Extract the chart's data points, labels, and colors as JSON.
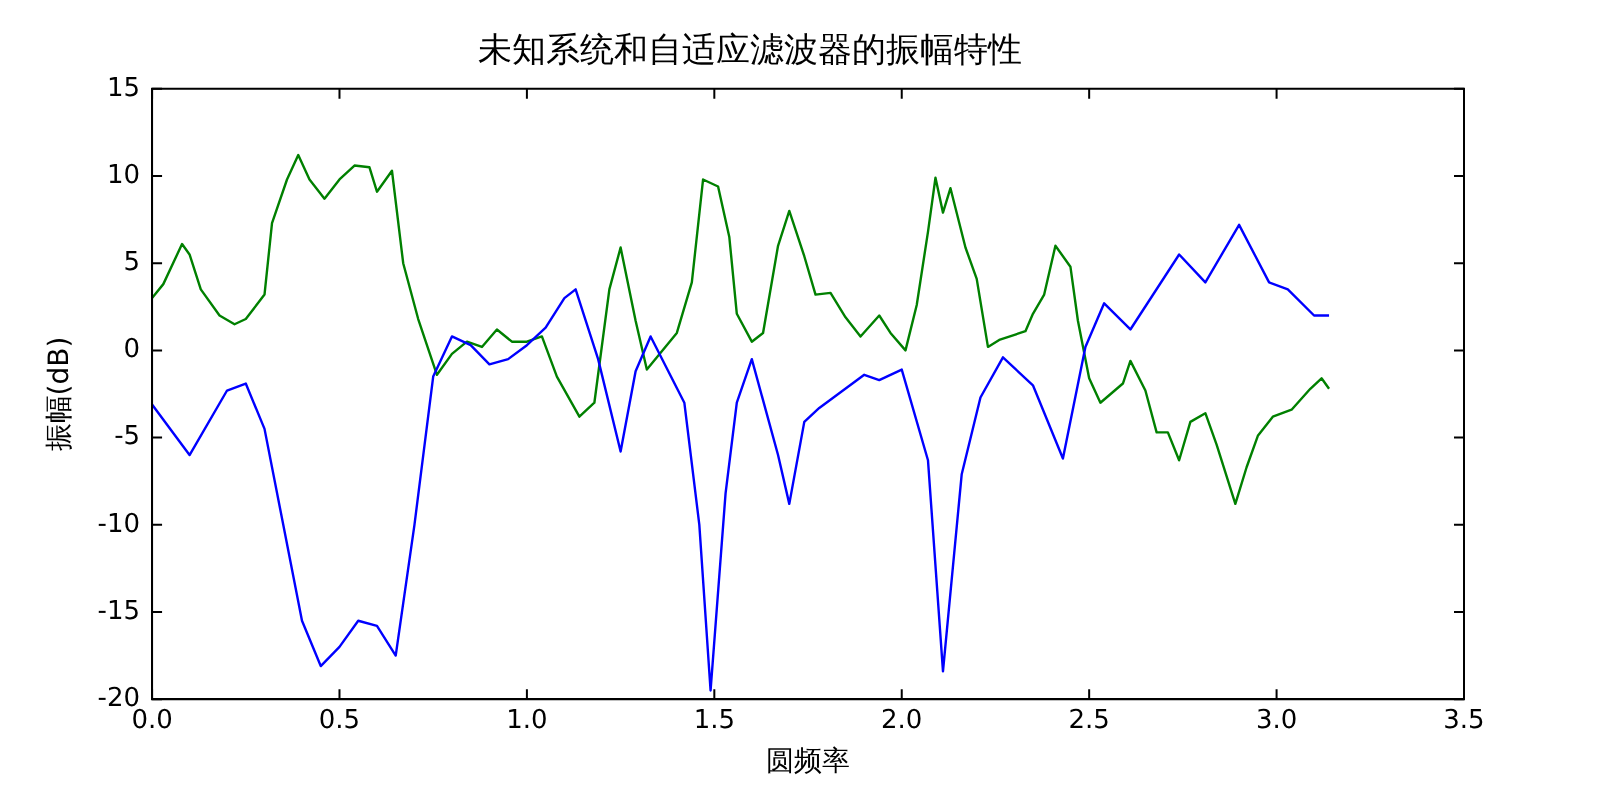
{
  "chart_data": {
    "type": "line",
    "title": "未知系统和自适应滤波器的振幅特性",
    "xlabel": "圆频率",
    "ylabel": "振幅(dB)",
    "xlim": [
      0,
      3.5
    ],
    "xticks": [
      {
        "value": 0,
        "label": "0.0"
      },
      {
        "value": 0.5,
        "label": "0.5"
      },
      {
        "value": 1,
        "label": "1.0"
      },
      {
        "value": 1.5,
        "label": "1.5"
      },
      {
        "value": 2,
        "label": "2.0"
      },
      {
        "value": 2.5,
        "label": "2.5"
      },
      {
        "value": 3,
        "label": "3.0"
      },
      {
        "value": 3.5,
        "label": "3.5"
      }
    ],
    "ylim": [
      -20,
      15
    ],
    "yticks": [
      -20,
      -15,
      -10,
      -5,
      0,
      5,
      10,
      15
    ],
    "grid": false,
    "legend": false,
    "marker": "none",
    "line_style": "solid",
    "series": [
      {
        "color": "#0000ff",
        "x": [
          0,
          0.1,
          0.2,
          0.25,
          0.3,
          0.35,
          0.4,
          0.45,
          0.5,
          0.55,
          0.6,
          0.65,
          0.7,
          0.75,
          0.8,
          0.85,
          0.9,
          0.95,
          1.0,
          1.05,
          1.1,
          1.13,
          1.19,
          1.25,
          1.29,
          1.33,
          1.42,
          1.46,
          1.49,
          1.53,
          1.56,
          1.6,
          1.67,
          1.7,
          1.74,
          1.78,
          1.9,
          1.94,
          2.0,
          2.07,
          2.11,
          2.16,
          2.21,
          2.27,
          2.35,
          2.43,
          2.49,
          2.54,
          2.61,
          2.74,
          2.81,
          2.9,
          2.98,
          3.03,
          3.1,
          3.14
        ],
        "values": [
          -3.1,
          -6.0,
          -2.3,
          -1.9,
          -4.5,
          -10,
          -15.5,
          -18.1,
          -17,
          -15.5,
          -15.8,
          -17.5,
          -10,
          -1.5,
          0.8,
          0.3,
          -0.8,
          -0.5,
          0.3,
          1.3,
          3.0,
          3.5,
          -0.5,
          -5.8,
          -1.2,
          0.8,
          -3.0,
          -10,
          -19.5,
          -8.2,
          -3.0,
          -0.5,
          -6.0,
          -8.8,
          -4.1,
          -3.3,
          -1.4,
          -1.7,
          -1.1,
          -6.3,
          -18.4,
          -7.1,
          -2.7,
          -0.4,
          -2.0,
          -6.2,
          0.2,
          2.7,
          1.2,
          5.5,
          3.9,
          7.2,
          3.9,
          3.5,
          2.0,
          2.0
        ]
      },
      {
        "color": "#008000",
        "x": [
          0,
          0.03,
          0.08,
          0.1,
          0.13,
          0.18,
          0.22,
          0.25,
          0.3,
          0.32,
          0.36,
          0.39,
          0.42,
          0.46,
          0.5,
          0.54,
          0.58,
          0.6,
          0.64,
          0.67,
          0.71,
          0.76,
          0.8,
          0.84,
          0.88,
          0.92,
          0.96,
          1.0,
          1.04,
          1.08,
          1.14,
          1.18,
          1.22,
          1.25,
          1.29,
          1.32,
          1.4,
          1.44,
          1.47,
          1.51,
          1.54,
          1.56,
          1.6,
          1.63,
          1.67,
          1.7,
          1.74,
          1.77,
          1.81,
          1.85,
          1.89,
          1.94,
          1.97,
          2.01,
          2.04,
          2.07,
          2.09,
          2.11,
          2.13,
          2.17,
          2.2,
          2.23,
          2.26,
          2.33,
          2.35,
          2.38,
          2.41,
          2.45,
          2.47,
          2.5,
          2.53,
          2.59,
          2.61,
          2.65,
          2.68,
          2.71,
          2.74,
          2.77,
          2.81,
          2.84,
          2.89,
          2.92,
          2.95,
          2.99,
          3.04,
          3.09,
          3.12,
          3.14
        ],
        "values": [
          3.0,
          3.8,
          6.1,
          5.5,
          3.5,
          2.0,
          1.5,
          1.8,
          3.2,
          7.3,
          9.8,
          11.2,
          9.8,
          8.7,
          9.8,
          10.6,
          10.5,
          9.1,
          10.3,
          5.0,
          1.8,
          -1.4,
          -0.2,
          0.5,
          0.2,
          1.2,
          0.5,
          0.5,
          0.8,
          -1.5,
          -3.8,
          -3.0,
          3.5,
          5.9,
          1.7,
          -1.1,
          1.0,
          3.9,
          9.8,
          9.4,
          6.5,
          2.1,
          0.5,
          1.0,
          6.0,
          8.0,
          5.4,
          3.2,
          3.3,
          1.9,
          0.8,
          2.0,
          1.0,
          0.0,
          2.6,
          6.8,
          9.9,
          7.9,
          9.3,
          5.9,
          4.1,
          0.2,
          0.6,
          1.1,
          2.1,
          3.2,
          6.0,
          4.8,
          1.7,
          -1.6,
          -3.0,
          -1.9,
          -0.6,
          -2.3,
          -4.7,
          -4.7,
          -6.3,
          -4.1,
          -3.6,
          -5.4,
          -8.8,
          -6.7,
          -4.9,
          -3.8,
          -3.4,
          -2.2,
          -1.6,
          -2.2
        ]
      }
    ]
  }
}
